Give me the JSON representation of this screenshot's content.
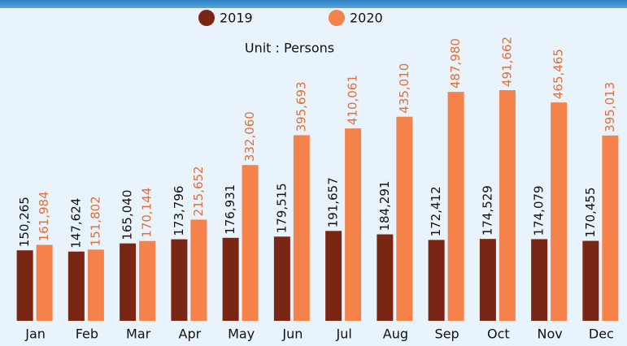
{
  "chart_data": {
    "type": "bar",
    "subtitle": "Unit : Persons",
    "categories": [
      "Jan",
      "Feb",
      "Mar",
      "Apr",
      "May",
      "Jun",
      "Jul",
      "Aug",
      "Sep",
      "Oct",
      "Nov",
      "Dec"
    ],
    "series": [
      {
        "name": "2019",
        "color": "#7a2614",
        "values": [
          150265,
          147624,
          165040,
          173796,
          176931,
          179515,
          191657,
          184291,
          172412,
          174529,
          174079,
          170455
        ],
        "value_labels": [
          "150,265",
          "147,624",
          "165,040",
          "173,796",
          "176,931",
          "179,515",
          "191,657",
          "184,291",
          "172,412",
          "174,529",
          "174,079",
          "170,455"
        ]
      },
      {
        "name": "2020",
        "color": "#f4824a",
        "values": [
          161984,
          151802,
          170144,
          215652,
          332060,
          395693,
          410061,
          435010,
          487980,
          491662,
          465465,
          395013
        ],
        "value_labels": [
          "161,984",
          "151,802",
          "170,144",
          "215,652",
          "332,060",
          "395,693",
          "410,061",
          "435,010",
          "487,980",
          "491,662",
          "465,465",
          "395,013"
        ]
      }
    ]
  }
}
